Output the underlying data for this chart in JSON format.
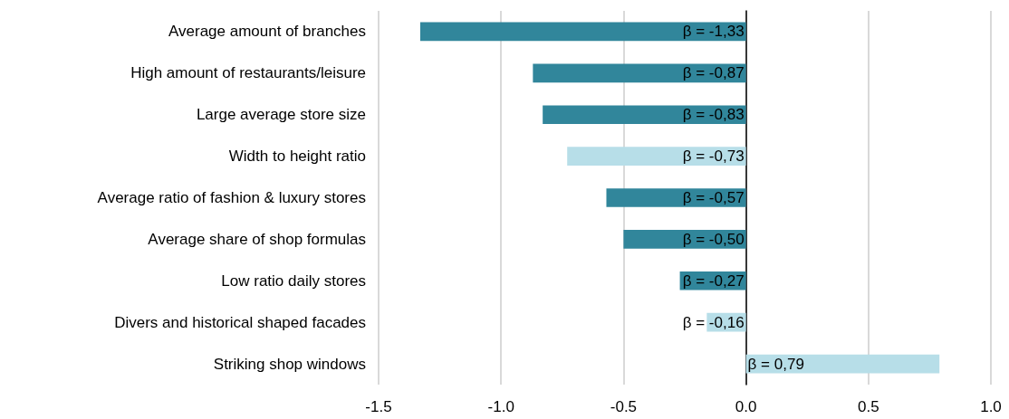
{
  "chart_data": {
    "type": "bar",
    "orientation": "horizontal",
    "categories": [
      "Average amount of branches",
      "High amount of restaurants/leisure",
      "Large average store size",
      "Width to height ratio",
      "Average ratio of fashion & luxury stores",
      "Average share of shop formulas",
      "Low ratio daily stores",
      "Divers and historical shaped facades",
      "Striking shop windows"
    ],
    "values": [
      -1.33,
      -0.87,
      -0.83,
      -0.73,
      -0.57,
      -0.5,
      -0.27,
      -0.16,
      0.79
    ],
    "colors": [
      "#31869b",
      "#31869b",
      "#31869b",
      "#b7dee8",
      "#31869b",
      "#31869b",
      "#31869b",
      "#b7dee8",
      "#b7dee8"
    ],
    "value_labels": [
      "β = -1,33",
      "β = -0,87",
      "β = -0,83",
      "β = -0,73",
      "β = -0,57",
      "β = -0,50",
      "β = -0,27",
      "β = -0,16",
      "β = 0,79"
    ],
    "xlim": [
      -1.5,
      1.0
    ],
    "xticks": [
      {
        "value": -1.5,
        "label": "-1.5"
      },
      {
        "value": -1,
        "label": "-1.0"
      },
      {
        "value": -0.5,
        "label": "-0.5"
      },
      {
        "value": 0,
        "label": "0.0"
      },
      {
        "value": 0.5,
        "label": "0.5"
      },
      {
        "value": 1,
        "label": "1.0"
      }
    ],
    "grid": "x"
  }
}
